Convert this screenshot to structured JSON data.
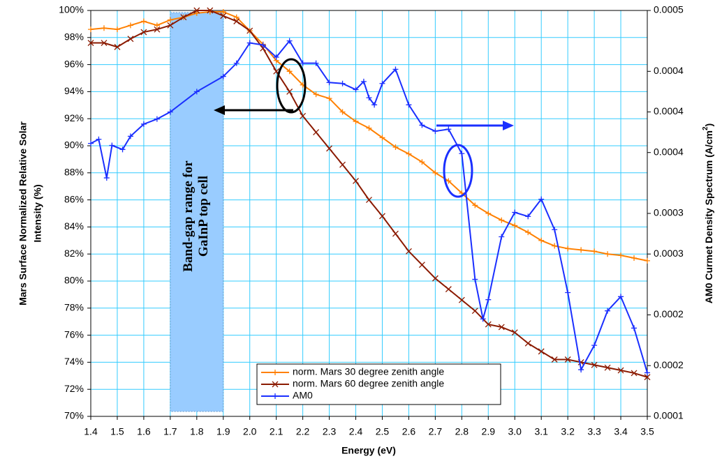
{
  "chart_data": {
    "type": "line",
    "x_label": "Energy (eV)",
    "y_label": [
      "Mars Surface Normalized Relative Solar",
      "Intensity (%)"
    ],
    "y2_label": [
      "AM0 Curmet Density Spectrum (A/cm",
      "2",
      ")"
    ],
    "xlim": [
      1.4,
      3.5
    ],
    "xticks": [
      1.4,
      1.5,
      1.6,
      1.7,
      1.8,
      1.9,
      {
        "value": 2.0,
        "label": "2.0"
      },
      2.1,
      2.2,
      2.3,
      2.4,
      2.5,
      2.6,
      2.7,
      2.8,
      2.9,
      {
        "value": 3.0,
        "label": "3.0"
      },
      3.1,
      3.2,
      3.3,
      3.4,
      3.5
    ],
    "ylim": [
      70,
      100
    ],
    "yticks": [
      {
        "value": 70,
        "label": "70%"
      },
      {
        "value": 72,
        "label": "72%"
      },
      {
        "value": 74,
        "label": "74%"
      },
      {
        "value": 76,
        "label": "76%"
      },
      {
        "value": 78,
        "label": "78%"
      },
      {
        "value": 80,
        "label": "80%"
      },
      {
        "value": 82,
        "label": "82%"
      },
      {
        "value": 84,
        "label": "84%"
      },
      {
        "value": 86,
        "label": "86%"
      },
      {
        "value": 88,
        "label": "88%"
      },
      {
        "value": 90,
        "label": "90%"
      },
      {
        "value": 92,
        "label": "92%"
      },
      {
        "value": 94,
        "label": "94%"
      },
      {
        "value": 96,
        "label": "96%"
      },
      {
        "value": 98,
        "label": "98%"
      },
      {
        "value": 100,
        "label": "100%"
      }
    ],
    "y2lim": [
      0.0001,
      0.0005
    ],
    "y2ticks": [
      0.0001,
      {
        "value": 0.00015,
        "label": "0.0002"
      },
      0.0002,
      {
        "value": 0.00026,
        "label": "0.0003"
      },
      0.0003,
      {
        "value": 0.00036,
        "label": "0.0004"
      },
      0.0004,
      {
        "value": 0.00044,
        "label": "0.0004"
      },
      0.0005
    ],
    "grid": true,
    "grid_color": "#33ccff",
    "band": {
      "x": [
        1.7,
        1.9
      ],
      "label": [
        "Band-gap range for",
        "GaInP top cell"
      ],
      "color": "#99ccff"
    },
    "series": [
      {
        "name": "norm. Mars 30 degree zenith angle",
        "color": "#ff8000",
        "marker": "+",
        "x": [
          1.4,
          1.45,
          1.5,
          1.55,
          1.6,
          1.65,
          1.7,
          1.75,
          1.8,
          1.85,
          1.9,
          1.95,
          2.0,
          2.05,
          2.1,
          2.15,
          2.2,
          2.25,
          2.3,
          2.35,
          2.4,
          2.45,
          2.5,
          2.55,
          2.6,
          2.65,
          2.7,
          2.75,
          2.8,
          2.85,
          2.9,
          2.95,
          3.0,
          3.05,
          3.1,
          3.15,
          3.2,
          3.25,
          3.3,
          3.35,
          3.4,
          3.45,
          3.5
        ],
        "values": [
          98.6,
          98.7,
          98.6,
          98.9,
          99.2,
          98.9,
          99.3,
          99.5,
          99.8,
          99.9,
          99.9,
          99.5,
          98.5,
          97.5,
          96.3,
          95.5,
          94.5,
          93.8,
          93.5,
          92.5,
          91.8,
          91.3,
          90.6,
          89.9,
          89.4,
          88.8,
          88.0,
          87.4,
          86.5,
          85.6,
          85.0,
          84.5,
          84.1,
          83.6,
          83.0,
          82.6,
          82.4,
          82.3,
          82.2,
          82.0,
          81.9,
          81.7,
          81.5
        ]
      },
      {
        "name": "norm. Mars 60 degree zenith angle",
        "color": "#8b1a00",
        "marker": "x",
        "x": [
          1.4,
          1.45,
          1.5,
          1.55,
          1.6,
          1.65,
          1.7,
          1.75,
          1.8,
          1.85,
          1.9,
          1.95,
          2.0,
          2.05,
          2.1,
          2.15,
          2.2,
          2.25,
          2.3,
          2.35,
          2.4,
          2.45,
          2.5,
          2.55,
          2.6,
          2.65,
          2.7,
          2.75,
          2.8,
          2.85,
          2.9,
          2.95,
          3.0,
          3.05,
          3.1,
          3.15,
          3.2,
          3.25,
          3.3,
          3.35,
          3.4,
          3.45,
          3.5
        ],
        "values": [
          97.6,
          97.6,
          97.3,
          97.9,
          98.4,
          98.6,
          98.9,
          99.5,
          100,
          100,
          99.6,
          99.2,
          98.5,
          97.2,
          95.5,
          94.0,
          92.2,
          91.0,
          89.8,
          88.6,
          87.4,
          86.0,
          84.8,
          83.5,
          82.2,
          81.2,
          80.2,
          79.4,
          78.6,
          77.8,
          76.8,
          76.6,
          76.2,
          75.4,
          74.8,
          74.2,
          74.2,
          74.0,
          73.8,
          73.6,
          73.4,
          73.2,
          72.9
        ]
      },
      {
        "name": "AM0",
        "color": "#1a2fff",
        "marker": "+",
        "axis": "y2",
        "x": [
          1.4,
          1.43,
          1.46,
          1.48,
          1.52,
          1.55,
          1.6,
          1.65,
          1.7,
          1.8,
          1.9,
          1.95,
          2.0,
          2.05,
          2.1,
          2.15,
          2.2,
          2.25,
          2.3,
          2.35,
          2.4,
          2.43,
          2.45,
          2.47,
          2.5,
          2.55,
          2.6,
          2.65,
          2.7,
          2.75,
          2.8,
          2.85,
          2.88,
          2.9,
          2.95,
          3.0,
          3.05,
          3.1,
          3.15,
          3.2,
          3.25,
          3.3,
          3.35,
          3.4,
          3.45,
          3.5
        ],
        "values": [
          0.000369,
          0.000373,
          0.000335,
          0.000367,
          0.000363,
          0.000376,
          0.000388,
          0.000393,
          0.0004,
          0.00042,
          0.000435,
          0.000448,
          0.000468,
          0.000466,
          0.000454,
          0.00047,
          0.000448,
          0.000448,
          0.000429,
          0.000428,
          0.000422,
          0.00043,
          0.000414,
          0.000407,
          0.000428,
          0.000442,
          0.000407,
          0.000387,
          0.000381,
          0.000383,
          0.000359,
          0.000235,
          0.000196,
          0.000215,
          0.000277,
          0.000301,
          0.000297,
          0.000314,
          0.000284,
          0.000222,
          0.000146,
          0.00017,
          0.000204,
          0.000218,
          0.000187,
          0.000143
        ]
      }
    ]
  }
}
